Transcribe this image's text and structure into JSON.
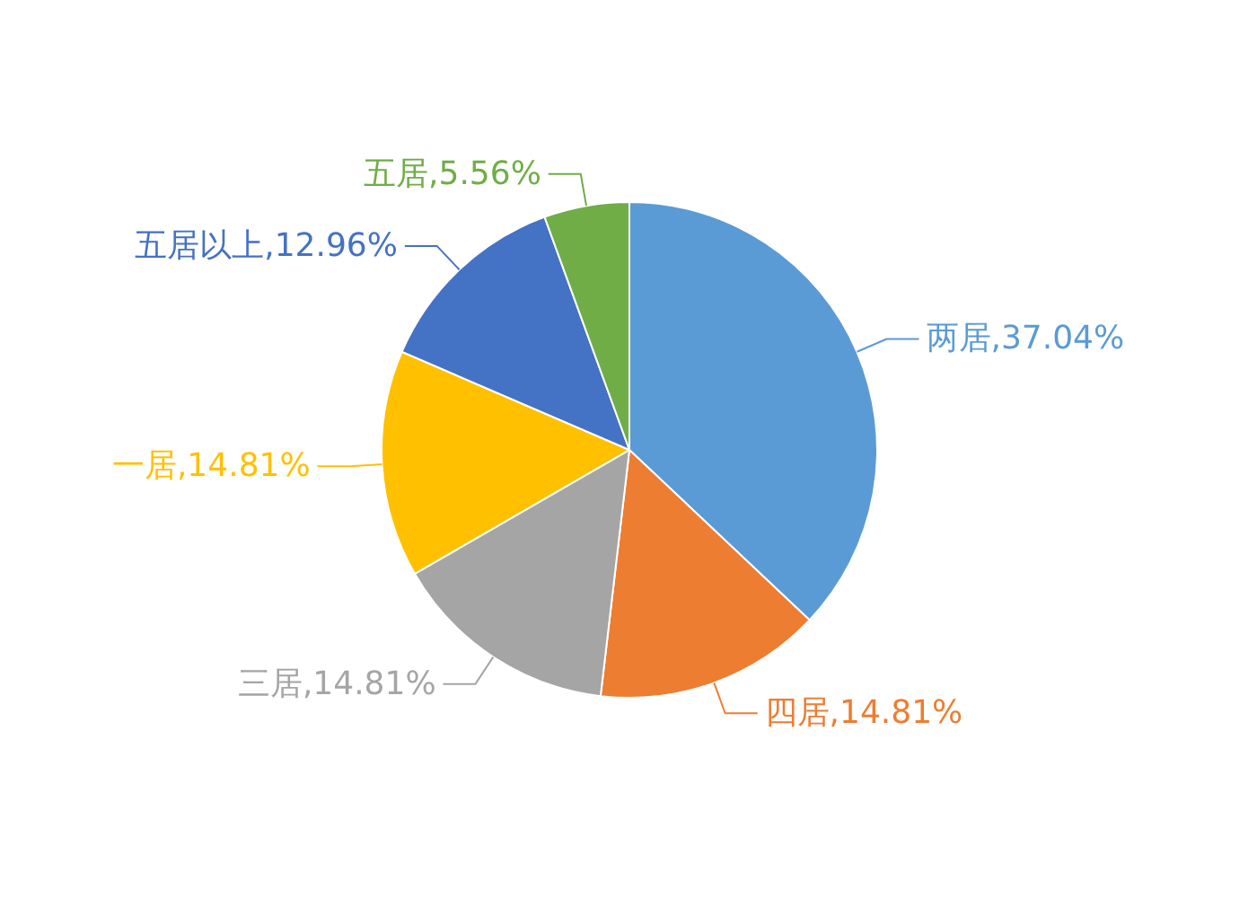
{
  "chart_data": {
    "type": "pie",
    "categories": [
      "两居",
      "四居",
      "三居",
      "一居",
      "五居以上",
      "五居"
    ],
    "values": [
      37.04,
      14.81,
      14.81,
      14.81,
      12.96,
      5.56
    ],
    "colors": [
      "#5b9bd5",
      "#ed7d31",
      "#a5a5a5",
      "#ffc000",
      "#4472c4",
      "#70ad47"
    ],
    "value_labels": [
      ",37.04%",
      ",14.81%",
      ",14.81%",
      ",14.81%",
      ",12.96%",
      ",5.56%"
    ]
  }
}
